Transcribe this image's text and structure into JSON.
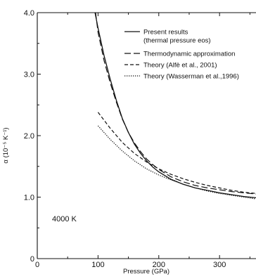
{
  "chart_data": {
    "type": "line",
    "title": "",
    "xlabel": "Pressure (GPa)",
    "ylabel": "α (10⁻⁵ K⁻¹)",
    "xlim": [
      0,
      360
    ],
    "ylim": [
      0,
      4.0
    ],
    "xticks": [
      0,
      100,
      200,
      300
    ],
    "yticks": [
      0,
      1.0,
      2.0,
      3.0,
      4.0
    ],
    "xtick_labels": [
      "0",
      "100",
      "200",
      "300"
    ],
    "ytick_labels": [
      "0",
      "1.0",
      "2.0",
      "3.0",
      "4.0"
    ],
    "grid": false,
    "legend_position": "top-right",
    "annotation": "4000 K",
    "legend": [
      {
        "label": "Present results",
        "label2": "(thermal pressure eos)",
        "style": "solid"
      },
      {
        "label": "Thermodynamic approximation",
        "style": "longdash"
      },
      {
        "label": "Theory (Alfè et al., 2001)",
        "style": "shortdash"
      },
      {
        "label": "Theory (Wasserman et al.,1996)",
        "style": "dotted"
      }
    ],
    "series": [
      {
        "style": "solid",
        "color": "#111111",
        "x": [
          95,
          100,
          110,
          120,
          130,
          140,
          150,
          160,
          170,
          180,
          190,
          200,
          220,
          240,
          260,
          280,
          300,
          320,
          340,
          360
        ],
        "y": [
          4.0,
          3.75,
          3.3,
          2.92,
          2.58,
          2.28,
          2.05,
          1.86,
          1.71,
          1.59,
          1.49,
          1.41,
          1.29,
          1.21,
          1.15,
          1.11,
          1.07,
          1.04,
          1.01,
          0.99
        ]
      },
      {
        "style": "longdash",
        "color": "#111111",
        "x": [
          96,
          100,
          110,
          120,
          130,
          140,
          150,
          160,
          170,
          180,
          190,
          200,
          220,
          240,
          260,
          280,
          300,
          320,
          340,
          360
        ],
        "y": [
          4.0,
          3.68,
          3.22,
          2.86,
          2.55,
          2.27,
          2.05,
          1.88,
          1.74,
          1.62,
          1.53,
          1.45,
          1.33,
          1.25,
          1.19,
          1.15,
          1.12,
          1.09,
          1.07,
          1.05
        ]
      },
      {
        "style": "shortdash",
        "color": "#111111",
        "x": [
          100,
          120,
          140,
          160,
          180,
          200,
          220,
          240,
          260,
          280,
          300,
          320,
          340,
          360
        ],
        "y": [
          2.38,
          2.12,
          1.89,
          1.71,
          1.57,
          1.46,
          1.37,
          1.3,
          1.24,
          1.19,
          1.15,
          1.11,
          1.08,
          1.06
        ]
      },
      {
        "style": "dotted",
        "color": "#111111",
        "x": [
          100,
          120,
          140,
          160,
          180,
          200,
          220,
          240,
          260,
          280,
          300,
          320,
          340,
          360
        ],
        "y": [
          2.16,
          1.94,
          1.75,
          1.59,
          1.46,
          1.36,
          1.28,
          1.21,
          1.15,
          1.1,
          1.06,
          1.03,
          1.0,
          0.97
        ]
      }
    ]
  }
}
